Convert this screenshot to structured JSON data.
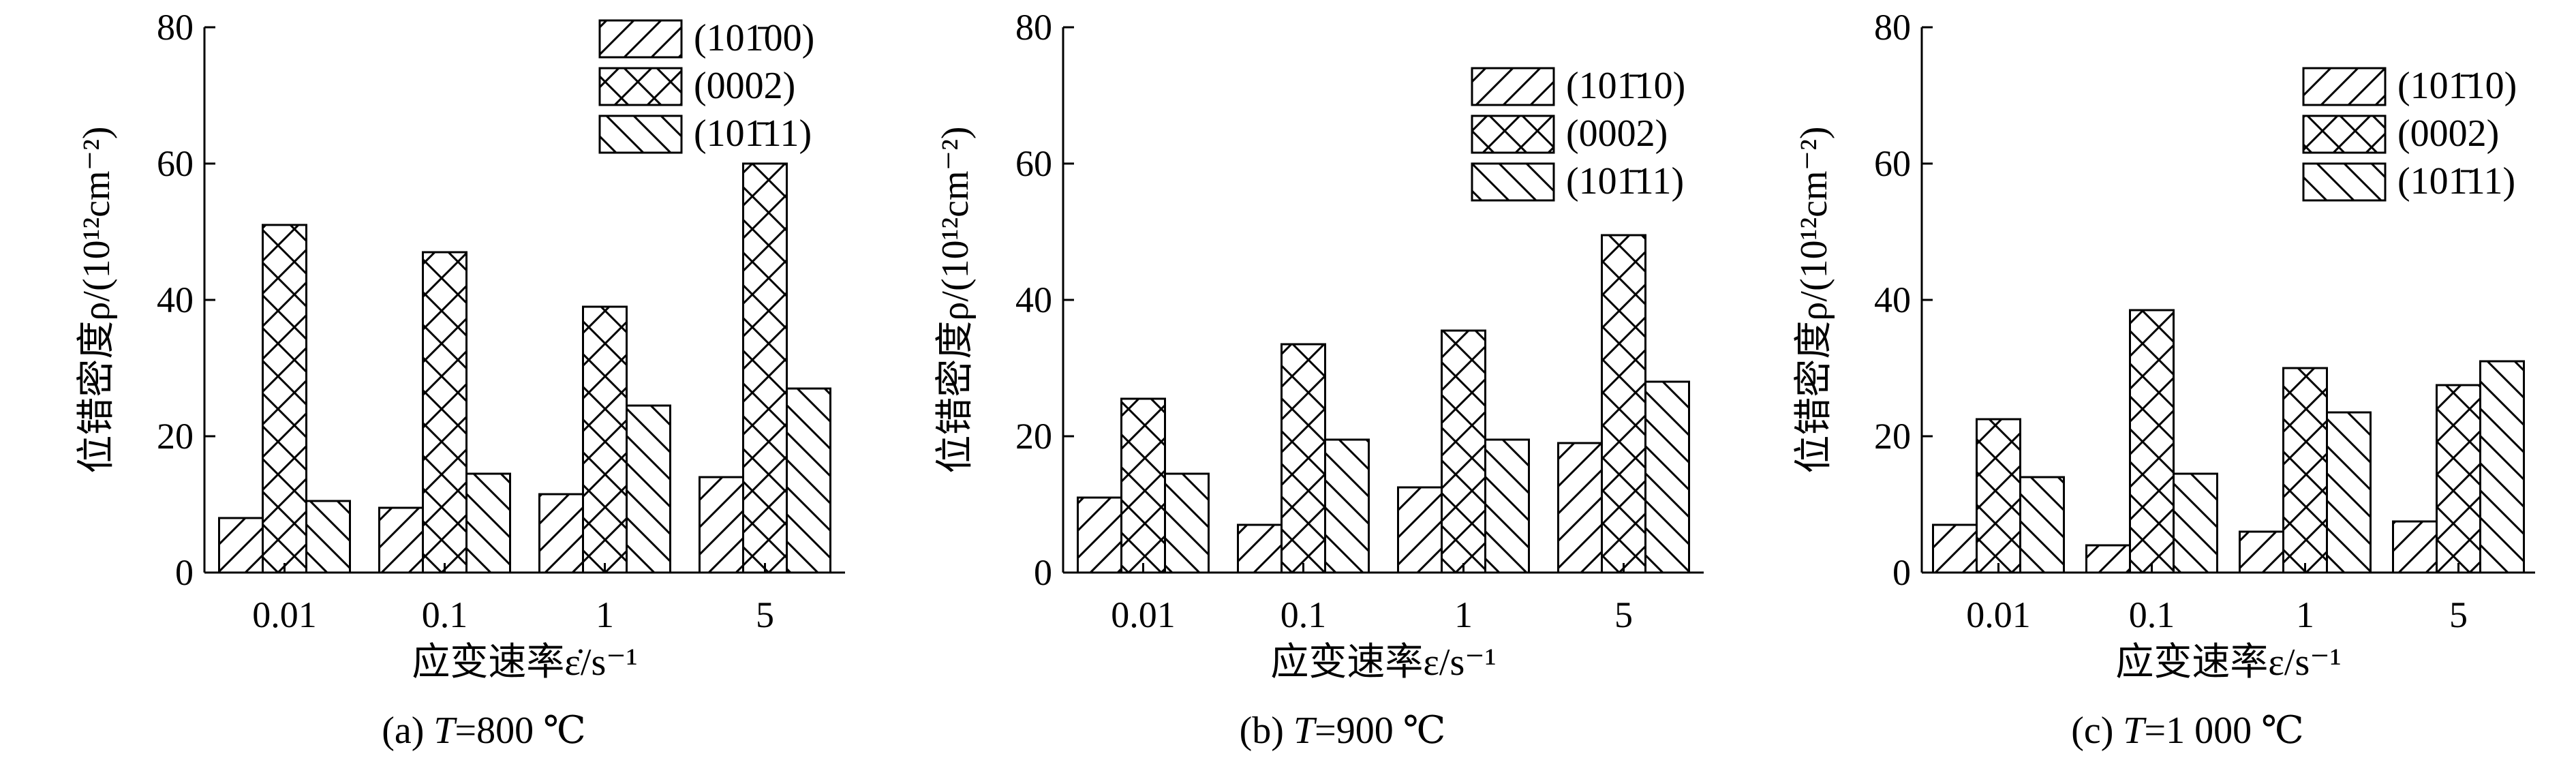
{
  "legend_labels": [
    "(101̄00)",
    "(0002)",
    "(101̄11)"
  ],
  "chart_data": [
    {
      "type": "bar",
      "caption": "(a) T=800 ℃",
      "caption_prefix": "(a) ",
      "caption_var": "T",
      "caption_rest": "=800 ℃",
      "xlabel": "应变速率ε̇/s⁻¹",
      "ylabel": "位错密度ρ/(10¹²cm⁻²)",
      "categories": [
        "0.01",
        "0.1",
        "1",
        "5"
      ],
      "ylim": [
        0,
        80
      ],
      "yticks": [
        0,
        20,
        40,
        60,
        80
      ],
      "legend_position": "top-right",
      "series": [
        {
          "name": "(101̄00)",
          "values": [
            8,
            9.5,
            11.5,
            14
          ]
        },
        {
          "name": "(0002)",
          "values": [
            51,
            47,
            39,
            60
          ]
        },
        {
          "name": "(101̄11)",
          "values": [
            10.5,
            14.5,
            24.5,
            27
          ]
        }
      ]
    },
    {
      "type": "bar",
      "caption": "(b) T=900 ℃",
      "caption_prefix": "(b) ",
      "caption_var": "T",
      "caption_rest": "=900 ℃",
      "xlabel": "应变速率ε/s⁻¹",
      "ylabel": "位错密度ρ/(10¹²cm⁻²)",
      "categories": [
        "0.01",
        "0.1",
        "1",
        "5"
      ],
      "ylim": [
        0,
        80
      ],
      "yticks": [
        0,
        20,
        40,
        60,
        80
      ],
      "legend_position": "top-right",
      "series": [
        {
          "name": "(101̄10)",
          "values": [
            11,
            7,
            12.5,
            19
          ]
        },
        {
          "name": "(0002)",
          "values": [
            25.5,
            33.5,
            35.5,
            49.5
          ]
        },
        {
          "name": "(101̄11)",
          "values": [
            14.5,
            19.5,
            19.5,
            28
          ]
        }
      ]
    },
    {
      "type": "bar",
      "caption": "(c) T=1 000 ℃",
      "caption_prefix": "(c) ",
      "caption_var": "T",
      "caption_rest": "=1 000 ℃",
      "xlabel": "应变速率ε/s⁻¹",
      "ylabel": "位错密度ρ/(10¹²cm⁻²)",
      "categories": [
        "0.01",
        "0.1",
        "1",
        "5"
      ],
      "ylim": [
        0,
        80
      ],
      "yticks": [
        0,
        20,
        40,
        60,
        80
      ],
      "legend_position": "top-right",
      "series": [
        {
          "name": "(101̄10)",
          "values": [
            7,
            4,
            6,
            7.5
          ]
        },
        {
          "name": "(0002)",
          "values": [
            22.5,
            38.5,
            30,
            27.5
          ]
        },
        {
          "name": "(101̄11)",
          "values": [
            14,
            14.5,
            23.5,
            31
          ]
        }
      ]
    }
  ]
}
